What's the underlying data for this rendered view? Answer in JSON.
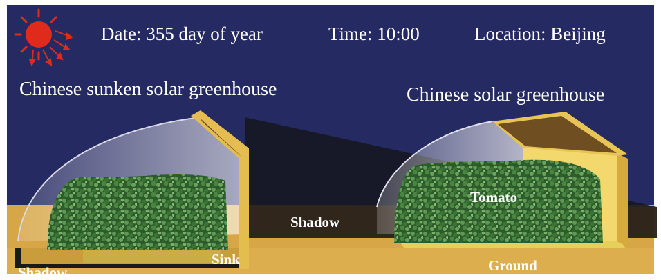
{
  "header": {
    "date": "Date: 355 day of year",
    "time": "Time: 10:00",
    "location": "Location: Beijing"
  },
  "greenhouses": {
    "left_title": "Chinese sunken solar greenhouse",
    "right_title": "Chinese solar greenhouse"
  },
  "labels": {
    "shadow_left": "Shadow",
    "sink": "Sink",
    "shadow_middle": "Shadow",
    "tomato": "Tomato",
    "ground": "Ground"
  },
  "colors": {
    "sky": "#262a62",
    "ground": "#d8a847",
    "wall": "#e7c451",
    "roof": "#6f4e21",
    "sun": "#e02b1c",
    "foliage": "#3f7a37"
  },
  "icons": {
    "sun": "sun-icon"
  }
}
